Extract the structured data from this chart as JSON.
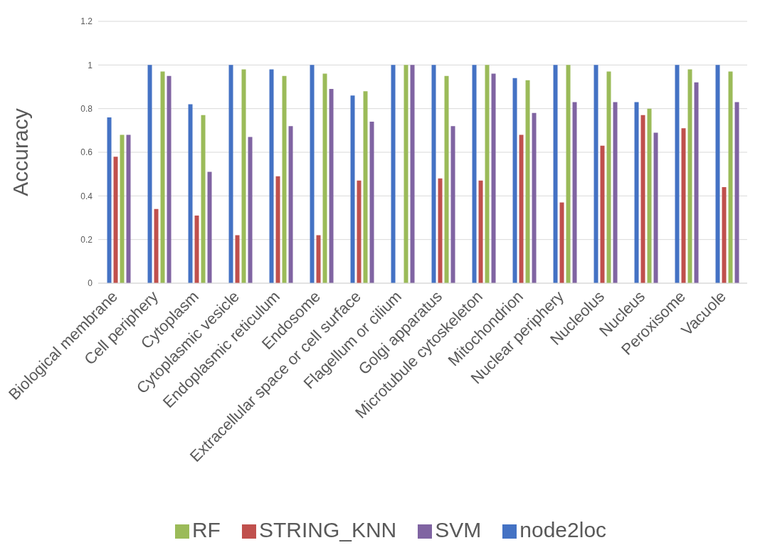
{
  "chart_data": {
    "type": "bar",
    "ylabel": "Accuracy",
    "categories": [
      "Biological membrane",
      "Cell periphery",
      "Cytoplasm",
      "Cytoplasmic vesicle",
      "Endoplasmic reticulum",
      "Endosome",
      "Extracellular space or cell surface",
      "Flagellum or cilium",
      "Golgi apparatus",
      "Microtubule cytoskeleton",
      "Mitochondrion",
      "Nuclear periphery",
      "Nucleolus",
      "Nucleus",
      "Peroxisome",
      "Vacuole"
    ],
    "series": [
      {
        "name": "node2loc",
        "color": "#4472c4",
        "values": [
          0.76,
          1,
          0.82,
          1,
          0.98,
          1,
          0.86,
          1,
          1,
          1,
          0.94,
          1,
          1,
          0.83,
          1,
          1
        ]
      },
      {
        "name": "STRING_KNN",
        "color": "#c0504d",
        "values": [
          0.58,
          0.34,
          0.31,
          0.22,
          0.49,
          0.22,
          0.47,
          0,
          0.48,
          0.47,
          0.68,
          0.37,
          0.63,
          0.77,
          0.71,
          0.44
        ]
      },
      {
        "name": "RF",
        "color": "#9bbb59",
        "values": [
          0.68,
          0.97,
          0.77,
          0.98,
          0.95,
          0.96,
          0.88,
          1,
          0.95,
          1,
          0.93,
          1,
          0.97,
          0.8,
          0.98,
          0.97
        ]
      },
      {
        "name": "SVM",
        "color": "#8064a2",
        "values": [
          0.68,
          0.95,
          0.51,
          0.67,
          0.72,
          0.89,
          0.74,
          1,
          0.72,
          0.96,
          0.78,
          0.83,
          0.83,
          0.69,
          0.92,
          0.83
        ]
      }
    ],
    "ylim": [
      0,
      1.2
    ],
    "yticks": [
      0,
      0.2,
      0.4,
      0.6,
      0.8,
      1,
      1.2
    ],
    "grid": "y",
    "legend": "bottom"
  }
}
